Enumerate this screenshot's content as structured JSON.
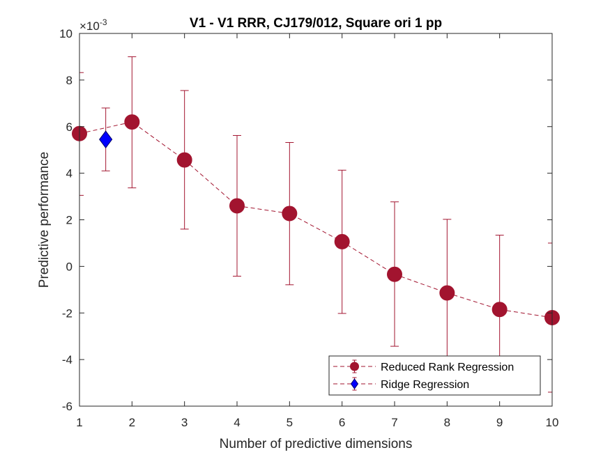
{
  "chart_data": {
    "type": "line",
    "title": "V1 - V1 RRR, CJ179/012, Square ori 1 pp",
    "xlabel": "Number of predictive dimensions",
    "ylabel": "Predictive performance",
    "exponent_base": "×10",
    "exponent_power": "-3",
    "xlim": [
      1,
      10
    ],
    "ylim": [
      -6,
      10
    ],
    "xticks": [
      1,
      2,
      3,
      4,
      5,
      6,
      7,
      8,
      9,
      10
    ],
    "yticks": [
      -6,
      -4,
      -2,
      0,
      2,
      4,
      6,
      8,
      10
    ],
    "legend_position": "bottom-right",
    "series": [
      {
        "name": "Reduced Rank Regression",
        "color": "#A2142F",
        "marker": "circle",
        "line_style": "dashed",
        "x": [
          1,
          2,
          3,
          4,
          5,
          6,
          7,
          8,
          9,
          10
        ],
        "y": [
          5.7,
          6.2,
          4.57,
          2.6,
          2.27,
          1.06,
          -0.34,
          -1.14,
          -1.85,
          -2.2
        ],
        "err_lower": [
          3.05,
          3.37,
          1.6,
          -0.42,
          -0.79,
          -2.02,
          -3.43,
          -4.3,
          -5.05,
          -5.4
        ],
        "err_upper": [
          8.32,
          9.0,
          7.55,
          5.62,
          5.32,
          4.13,
          2.77,
          2.02,
          1.34,
          1.0
        ]
      },
      {
        "name": "Ridge Regression",
        "color": "#A2142F",
        "marker_color": "#0000FF",
        "marker": "diamond",
        "x": [
          1.5
        ],
        "y": [
          5.45
        ],
        "err_lower": [
          4.1
        ],
        "err_upper": [
          6.8
        ]
      }
    ]
  }
}
